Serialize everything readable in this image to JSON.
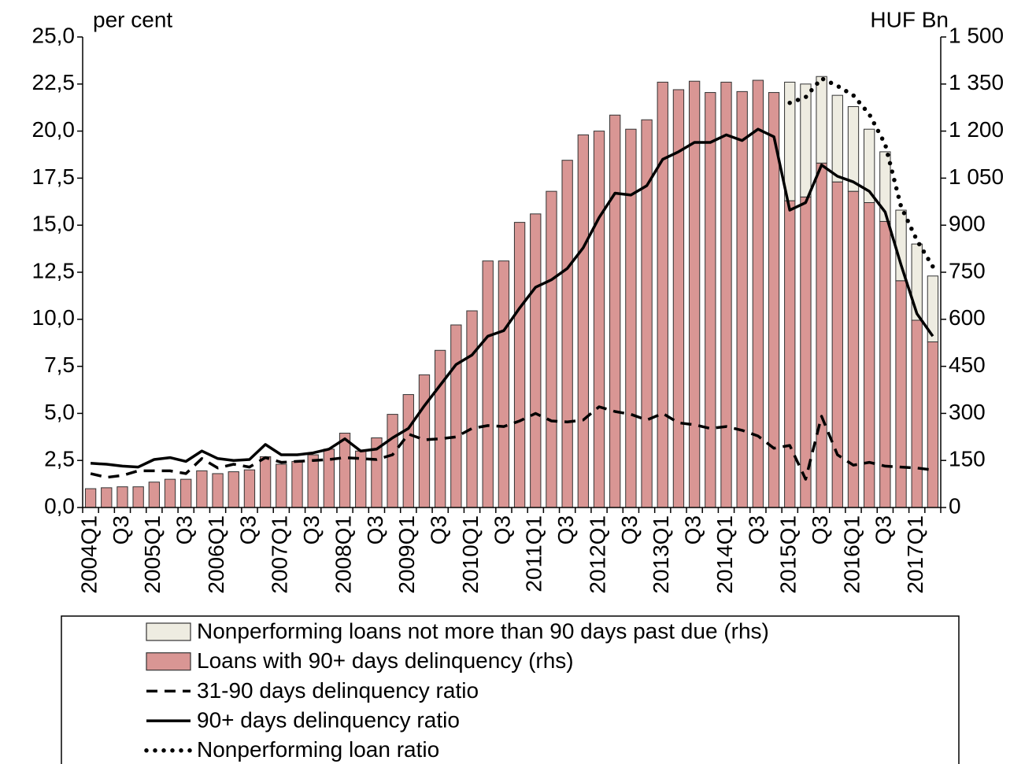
{
  "chart_data": {
    "type": "bar",
    "y_label": "per cent",
    "y2_label": "HUF Bn",
    "categories": [
      "2004Q1",
      null,
      "Q3",
      null,
      "2005Q1",
      null,
      "Q3",
      null,
      "2006Q1",
      null,
      "Q3",
      null,
      "2007Q1",
      null,
      "Q3",
      null,
      "2008Q1",
      null,
      "Q3",
      null,
      "2009Q1",
      null,
      "Q3",
      null,
      "2010Q1",
      null,
      "Q3",
      null,
      "2011Q1",
      null,
      "Q3",
      null,
      "2012Q1",
      null,
      "Q3",
      null,
      "2013Q1",
      null,
      "Q3",
      null,
      "2014Q1",
      null,
      "Q3",
      null,
      "2015Q1",
      null,
      "Q3",
      null,
      "2016Q1",
      null,
      "Q3",
      null,
      "2017Q1",
      null
    ],
    "ylim": [
      0,
      25
    ],
    "yticks": [
      {
        "value": 0,
        "label": "0,0"
      },
      {
        "value": 2.5,
        "label": "2,5"
      },
      {
        "value": 5,
        "label": "5,0"
      },
      {
        "value": 7.5,
        "label": "7,5"
      },
      {
        "value": 10,
        "label": "10,0"
      },
      {
        "value": 12.5,
        "label": "12,5"
      },
      {
        "value": 15,
        "label": "15,0"
      },
      {
        "value": 17.5,
        "label": "17,5"
      },
      {
        "value": 20,
        "label": "20,0"
      },
      {
        "value": 22.5,
        "label": "22,5"
      },
      {
        "value": 25,
        "label": "25,0"
      }
    ],
    "y2lim": [
      0,
      1500
    ],
    "y2ticks": [
      0,
      150,
      300,
      450,
      600,
      750,
      900,
      {
        "value": 1050,
        "label": "1 050"
      },
      {
        "value": 1200,
        "label": "1 200"
      },
      {
        "value": 1350,
        "label": "1 350"
      },
      {
        "value": 1500,
        "label": "1 500"
      }
    ],
    "stacked": true,
    "series": [
      {
        "name": "Nonperforming loans not more than 90 days past due (rhs)",
        "type": "bar",
        "axis": "y2",
        "color": "#eeece1",
        "values": [
          null,
          null,
          null,
          null,
          null,
          null,
          null,
          null,
          null,
          null,
          null,
          null,
          null,
          null,
          null,
          null,
          null,
          null,
          null,
          null,
          null,
          null,
          null,
          null,
          null,
          null,
          null,
          null,
          null,
          null,
          null,
          null,
          null,
          null,
          null,
          null,
          null,
          null,
          null,
          null,
          null,
          null,
          null,
          null,
          378,
          360,
          276,
          276,
          270,
          234,
          222,
          225,
          243,
          210
        ]
      },
      {
        "name": "Loans with 90+ days delinquency (rhs)",
        "type": "bar",
        "axis": "y2",
        "color": "#d99694",
        "values": [
          60,
          63,
          66,
          66,
          81,
          90,
          90,
          117,
          108,
          114,
          120,
          162,
          138,
          147,
          168,
          186,
          237,
          180,
          222,
          297,
          360,
          423,
          501,
          582,
          627,
          786,
          786,
          909,
          936,
          1008,
          1107,
          1188,
          1200,
          1251,
          1206,
          1236,
          1356,
          1332,
          1359,
          1323,
          1356,
          1326,
          1362,
          1323,
          978,
          990,
          1098,
          1038,
          1008,
          972,
          912,
          723,
          597,
          528
        ]
      },
      {
        "name": "31-90 days delinquency ratio",
        "type": "line",
        "dash": "dashed",
        "color": "#000000",
        "values": [
          1.8,
          1.6,
          1.7,
          1.95,
          1.95,
          1.95,
          1.8,
          2.6,
          2.1,
          2.3,
          2.15,
          2.65,
          2.4,
          2.45,
          2.5,
          2.55,
          2.65,
          2.6,
          2.55,
          2.8,
          3.9,
          3.6,
          3.65,
          3.75,
          4.2,
          4.35,
          4.3,
          4.6,
          5.0,
          4.6,
          4.55,
          4.65,
          5.35,
          5.1,
          4.95,
          4.65,
          5.0,
          4.5,
          4.4,
          4.2,
          4.3,
          4.1,
          3.8,
          3.15,
          3.3,
          1.5,
          4.85,
          2.8,
          2.25,
          2.4,
          2.2,
          2.15,
          2.1,
          2.0
        ]
      },
      {
        "name": "90+ days delinquency ratio",
        "type": "line",
        "dash": "solid",
        "color": "#000000",
        "values": [
          2.35,
          2.3,
          2.2,
          2.15,
          2.55,
          2.65,
          2.45,
          3.0,
          2.6,
          2.5,
          2.55,
          3.35,
          2.8,
          2.8,
          2.9,
          3.1,
          3.65,
          3.0,
          3.1,
          3.7,
          4.2,
          5.4,
          6.5,
          7.6,
          8.1,
          9.1,
          9.4,
          10.6,
          11.7,
          12.1,
          12.7,
          13.8,
          15.4,
          16.7,
          16.6,
          17.1,
          18.5,
          18.9,
          19.4,
          19.4,
          19.8,
          19.5,
          20.1,
          19.7,
          15.8,
          16.2,
          18.2,
          17.6,
          17.3,
          16.8,
          15.7,
          12.9,
          10.3,
          9.1
        ]
      },
      {
        "name": "Nonperforming loan ratio",
        "type": "line",
        "dash": "dotted",
        "color": "#000000",
        "values": [
          null,
          null,
          null,
          null,
          null,
          null,
          null,
          null,
          null,
          null,
          null,
          null,
          null,
          null,
          null,
          null,
          null,
          null,
          null,
          null,
          null,
          null,
          null,
          null,
          null,
          null,
          null,
          null,
          null,
          null,
          null,
          null,
          null,
          null,
          null,
          null,
          null,
          null,
          null,
          null,
          null,
          null,
          null,
          null,
          21.5,
          21.8,
          22.8,
          22.4,
          21.9,
          20.9,
          19.3,
          16.0,
          14.2,
          12.8
        ]
      }
    ]
  }
}
